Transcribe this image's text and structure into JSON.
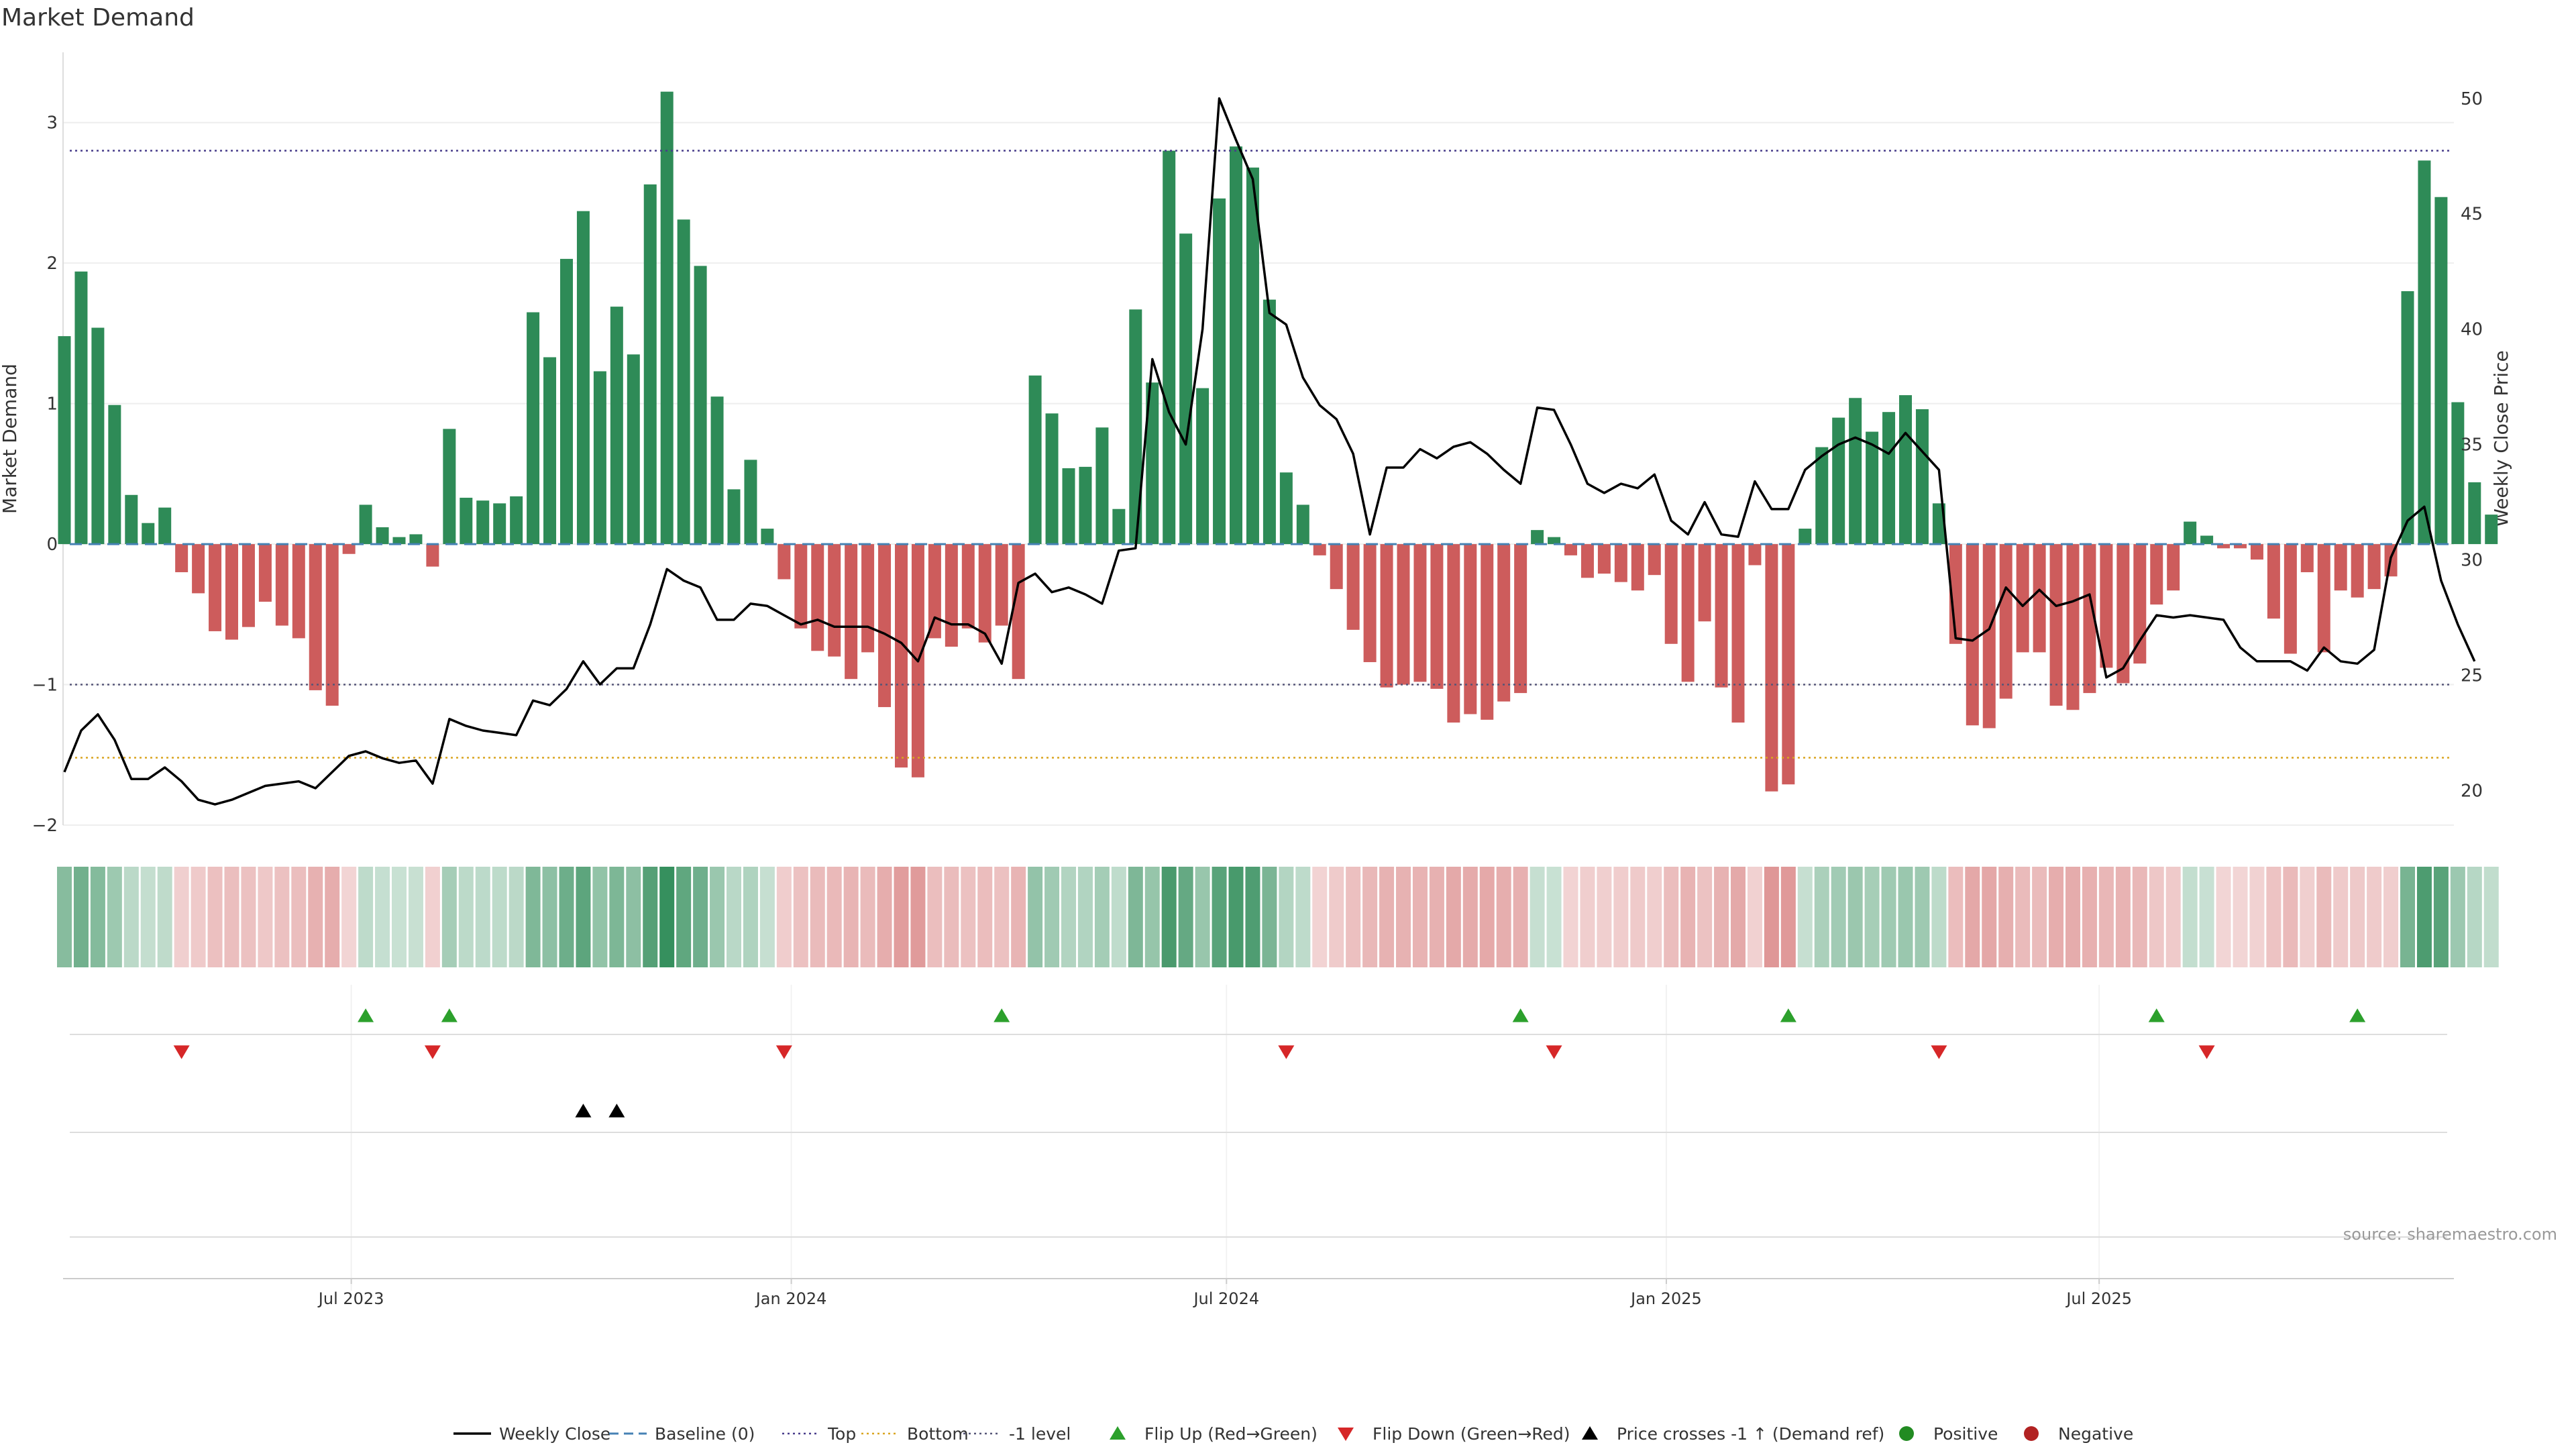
{
  "chart_data": {
    "type": "bar",
    "title": "Market Demand",
    "ylabel": "Market Demand",
    "y2label": "Weekly Close Price",
    "ylim": [
      -2.0,
      3.5
    ],
    "y2lim": [
      18.5,
      52
    ],
    "yticks": [
      -2,
      -1,
      0,
      1,
      2,
      3
    ],
    "y2ticks": [
      20,
      25,
      30,
      35,
      40,
      45,
      50
    ],
    "date_start": "2023-03-06",
    "interval_days": 7,
    "xticks": [
      {
        "label": "Jul 2023",
        "index": 17.14
      },
      {
        "label": "Jan 2024",
        "index": 43.43
      },
      {
        "label": "Jul 2024",
        "index": 69.43
      },
      {
        "label": "Jan 2025",
        "index": 95.71
      },
      {
        "label": "Jul 2025",
        "index": 121.57
      }
    ],
    "levels": {
      "baseline": 0,
      "top": 2.8,
      "bottom": -1.52,
      "minus_one": -1
    },
    "demand": [
      1.48,
      1.94,
      1.54,
      0.99,
      0.35,
      0.15,
      0.26,
      -0.2,
      -0.35,
      -0.62,
      -0.68,
      -0.59,
      -0.41,
      -0.58,
      -0.67,
      -1.04,
      -1.15,
      -0.07,
      0.28,
      0.12,
      0.05,
      0.07,
      -0.16,
      0.82,
      0.33,
      0.31,
      0.29,
      0.34,
      1.65,
      1.33,
      2.03,
      2.37,
      1.23,
      1.69,
      1.35,
      2.56,
      3.22,
      2.31,
      1.98,
      1.05,
      0.39,
      0.6,
      0.11,
      -0.25,
      -0.6,
      -0.76,
      -0.8,
      -0.96,
      -0.77,
      -1.16,
      -1.59,
      -1.66,
      -0.67,
      -0.73,
      -0.6,
      -0.7,
      -0.58,
      -0.96,
      1.2,
      0.93,
      0.54,
      0.55,
      0.83,
      0.25,
      1.67,
      1.15,
      2.8,
      2.21,
      1.11,
      2.46,
      2.83,
      2.68,
      1.74,
      0.51,
      0.28,
      -0.08,
      -0.32,
      -0.61,
      -0.84,
      -1.02,
      -1.0,
      -0.98,
      -1.03,
      -1.27,
      -1.21,
      -1.25,
      -1.12,
      -1.06,
      0.1,
      0.05,
      -0.08,
      -0.24,
      -0.21,
      -0.27,
      -0.33,
      -0.22,
      -0.71,
      -0.98,
      -0.55,
      -1.02,
      -1.27,
      -0.15,
      -1.76,
      -1.71,
      0.11,
      0.69,
      0.9,
      1.04,
      0.8,
      0.94,
      1.06,
      0.96,
      0.29,
      -0.71,
      -1.29,
      -1.31,
      -1.1,
      -0.77,
      -0.77,
      -1.15,
      -1.18,
      -1.06,
      -0.88,
      -0.99,
      -0.85,
      -0.43,
      -0.33,
      0.16,
      0.06,
      -0.03,
      -0.03,
      -0.11,
      -0.53,
      -0.78,
      -0.2,
      -0.77,
      -0.33,
      -0.38,
      -0.32,
      -0.23,
      1.8,
      2.73,
      2.47,
      1.01,
      0.44,
      0.21
    ],
    "price": [
      20.8,
      22.6,
      23.3,
      22.2,
      20.5,
      20.5,
      21.0,
      20.4,
      19.6,
      19.4,
      19.6,
      19.9,
      20.2,
      20.3,
      20.4,
      20.1,
      20.8,
      21.5,
      21.7,
      21.4,
      21.2,
      21.3,
      20.3,
      23.1,
      22.8,
      22.6,
      22.5,
      22.4,
      23.9,
      23.7,
      24.4,
      25.6,
      24.6,
      25.3,
      25.3,
      27.2,
      29.6,
      29.1,
      28.8,
      27.4,
      27.4,
      28.1,
      28.0,
      27.6,
      27.2,
      27.4,
      27.1,
      27.1,
      27.1,
      26.8,
      26.4,
      25.6,
      27.5,
      27.2,
      27.2,
      26.8,
      25.5,
      29.0,
      29.4,
      28.6,
      28.8,
      28.5,
      28.1,
      30.4,
      30.5,
      38.7,
      36.4,
      35.0,
      40.0,
      50.0,
      48.2,
      46.5,
      40.7,
      40.2,
      37.9,
      36.7,
      36.1,
      34.6,
      31.1,
      34.0,
      34.0,
      34.8,
      34.4,
      34.9,
      35.1,
      34.6,
      33.9,
      33.3,
      36.6,
      36.5,
      35.0,
      33.3,
      32.9,
      33.3,
      33.1,
      33.7,
      31.7,
      31.1,
      32.5,
      31.1,
      31.0,
      33.4,
      32.2,
      32.2,
      33.9,
      34.5,
      35.0,
      35.3,
      35.0,
      34.6,
      35.5,
      34.7,
      33.9,
      26.6,
      26.5,
      27.0,
      28.8,
      28.0,
      28.7,
      28.0,
      28.2,
      28.5,
      24.9,
      25.3,
      26.5,
      27.6,
      27.5,
      27.6,
      27.5,
      27.4,
      26.2,
      25.6,
      25.6,
      25.6,
      25.2,
      26.2,
      25.6,
      25.5,
      26.1,
      30.1,
      31.7,
      32.3,
      29.1,
      27.2,
      25.6
    ],
    "flip_up_index": [
      18,
      23,
      56,
      87,
      103,
      125,
      137
    ],
    "flip_down_index": [
      7,
      22,
      43,
      73,
      89,
      112,
      128
    ],
    "price_cross_index": [
      31,
      33
    ],
    "colors": {
      "pos_bar": "#2e8b57",
      "neg_bar": "#cd5c5c",
      "price_line": "#000000",
      "baseline": "#4682b4",
      "top": "#483d8b",
      "bottom": "#daa520",
      "minus_one": "#555577",
      "flip_up": "#2ca02c",
      "flip_down": "#d62728",
      "price_cross": "#000000",
      "positive_dot": "#228b22",
      "negative_dot": "#b22222"
    },
    "legend": [
      {
        "label": "Weekly Close",
        "kind": "line"
      },
      {
        "label": "Baseline (0)",
        "kind": "dash"
      },
      {
        "label": "Top",
        "kind": "dot"
      },
      {
        "label": "Bottom",
        "kind": "dot-bottom"
      },
      {
        "label": "-1 level",
        "kind": "dot-minus"
      },
      {
        "label": "Flip Up (Red→Green)",
        "kind": "tri-up"
      },
      {
        "label": "Flip Down (Green→Red)",
        "kind": "tri-down"
      },
      {
        "label": "Price crosses -1 ↑ (Demand ref)",
        "kind": "tri-black"
      },
      {
        "label": "Positive",
        "kind": "dot-pos"
      },
      {
        "label": "Negative",
        "kind": "dot-neg"
      }
    ],
    "legend_position": "bottom-center"
  },
  "source": "source: sharemaestro.com"
}
